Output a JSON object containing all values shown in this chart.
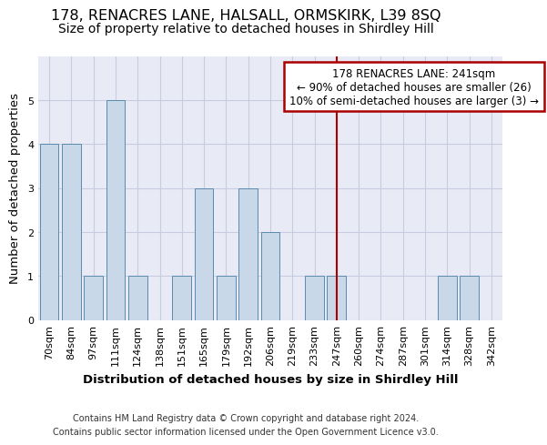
{
  "title": "178, RENACRES LANE, HALSALL, ORMSKIRK, L39 8SQ",
  "subtitle": "Size of property relative to detached houses in Shirdley Hill",
  "xlabel": "Distribution of detached houses by size in Shirdley Hill",
  "ylabel": "Number of detached properties",
  "footnote1": "Contains HM Land Registry data © Crown copyright and database right 2024.",
  "footnote2": "Contains public sector information licensed under the Open Government Licence v3.0.",
  "annotation_line1": "178 RENACRES LANE: 241sqm",
  "annotation_line2": "← 90% of detached houses are smaller (26)",
  "annotation_line3": "10% of semi-detached houses are larger (3) →",
  "bar_color": "#c8d8e8",
  "bar_edge_color": "#5a8ab0",
  "vline_color": "#aa0000",
  "annotation_box_edge_color": "#aa0000",
  "categories": [
    "70sqm",
    "84sqm",
    "97sqm",
    "111sqm",
    "124sqm",
    "138sqm",
    "151sqm",
    "165sqm",
    "179sqm",
    "192sqm",
    "206sqm",
    "219sqm",
    "233sqm",
    "247sqm",
    "260sqm",
    "274sqm",
    "287sqm",
    "301sqm",
    "314sqm",
    "328sqm",
    "342sqm"
  ],
  "values": [
    4,
    4,
    1,
    5,
    1,
    0,
    1,
    3,
    1,
    3,
    2,
    0,
    1,
    1,
    0,
    0,
    0,
    0,
    1,
    1,
    0
  ],
  "vline_position": 13.0,
  "ylim": [
    0,
    6
  ],
  "yticks": [
    0,
    1,
    2,
    3,
    4,
    5,
    6
  ],
  "grid_color": "#c8cce0",
  "bg_color": "#e8eaf5",
  "title_fontsize": 11.5,
  "subtitle_fontsize": 10,
  "label_fontsize": 9.5,
  "tick_fontsize": 8,
  "annot_fontsize": 8.5,
  "footnote_fontsize": 7
}
